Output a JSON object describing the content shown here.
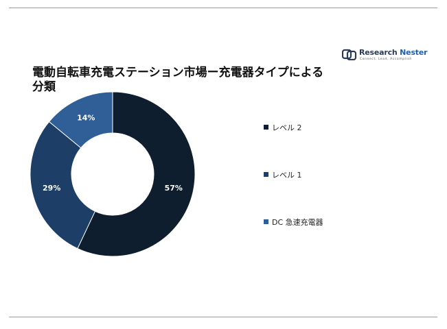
{
  "chart_data": {
    "type": "pie",
    "variant": "donut",
    "title": "電動自転車充電ステーション市場ー充電器タイプによる分類",
    "legend_position": "right",
    "categories": [
      "レベル 2",
      "レベル 1",
      "DC 急速充電器"
    ],
    "values": [
      57,
      29,
      14
    ],
    "labels": [
      "57%",
      "29%",
      "14%"
    ],
    "colors": [
      "#0f1e2e",
      "#1d3e66",
      "#2f5f96"
    ]
  },
  "logo": {
    "name_part1": "Research ",
    "name_part2": "Nester",
    "tagline": "Connect. Lead. Accomplish"
  }
}
